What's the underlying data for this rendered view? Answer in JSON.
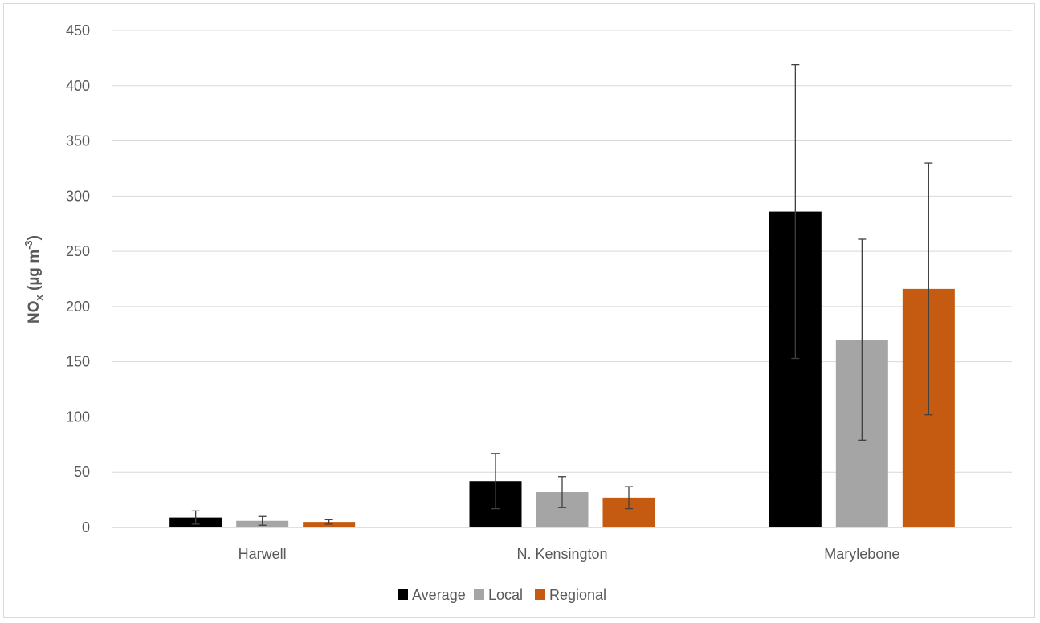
{
  "chart_data": {
    "type": "bar",
    "title": "",
    "xlabel": "",
    "ylabel": {
      "prefix": "NO",
      "subscript": "x",
      "unit": " (µg m",
      "superscript": "-3",
      "suffix": ")"
    },
    "ylim": [
      0,
      450
    ],
    "yticks": [
      0,
      50,
      100,
      150,
      200,
      250,
      300,
      350,
      400,
      450
    ],
    "grid": true,
    "legend_position": "bottom",
    "categories": [
      "Harwell",
      "N. Kensington",
      "Marylebone"
    ],
    "series": [
      {
        "name": "Average",
        "color": "#000000",
        "values": [
          9,
          42,
          286
        ],
        "err_low": [
          3,
          17,
          153
        ],
        "err_high": [
          15,
          67,
          419
        ]
      },
      {
        "name": "Local",
        "color": "#a5a5a5",
        "values": [
          6,
          32,
          170
        ],
        "err_low": [
          2,
          18,
          79
        ],
        "err_high": [
          10,
          46,
          261
        ]
      },
      {
        "name": "Regional",
        "color": "#c55a11",
        "values": [
          5,
          27,
          216
        ],
        "err_low": [
          3,
          17,
          102
        ],
        "err_high": [
          7,
          37,
          330
        ]
      }
    ]
  }
}
